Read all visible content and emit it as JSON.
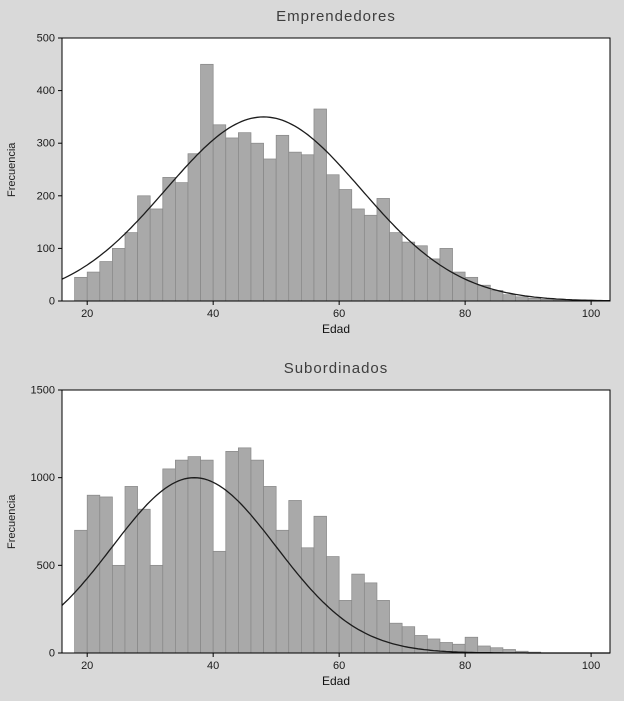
{
  "figure": {
    "background": "#d9d9d9"
  },
  "chart_data": [
    {
      "type": "bar",
      "subtype": "histogram-with-normal-curve",
      "title": "Emprendedores",
      "xlabel": "Edad",
      "ylabel": "Frecuencia",
      "bin_start": 18,
      "bin_width": 2,
      "values": [
        45,
        55,
        75,
        100,
        130,
        200,
        175,
        235,
        225,
        280,
        450,
        335,
        310,
        320,
        300,
        270,
        315,
        283,
        278,
        365,
        240,
        212,
        175,
        163,
        195,
        130,
        112,
        105,
        80,
        100,
        55,
        45,
        30,
        20,
        12,
        8,
        5,
        3,
        2,
        1
      ],
      "curve": {
        "type": "normal",
        "mean": 48,
        "sd": 15.5,
        "peak": 350
      },
      "xlim": [
        16,
        103
      ],
      "ylim": [
        0,
        500
      ],
      "xticks": [
        20,
        40,
        60,
        80,
        100
      ],
      "yticks": [
        0,
        100,
        200,
        300,
        400,
        500
      ],
      "grid": "off",
      "legend": "none",
      "bar_fill": "#a9a9a9",
      "bar_stroke": "#878787",
      "curve_color": "#1c1c1c",
      "frame_color": "#000000",
      "plot_background": "#ffffff"
    },
    {
      "type": "bar",
      "subtype": "histogram-with-normal-curve",
      "title": "Subordinados",
      "xlabel": "Edad",
      "ylabel": "Frecuencia",
      "bin_start": 18,
      "bin_width": 2,
      "values": [
        700,
        900,
        890,
        500,
        950,
        820,
        500,
        1050,
        1100,
        1120,
        1100,
        580,
        1150,
        1170,
        1100,
        950,
        700,
        870,
        600,
        780,
        550,
        300,
        450,
        400,
        300,
        170,
        150,
        100,
        80,
        60,
        50,
        90,
        40,
        30,
        20,
        10,
        5
      ],
      "curve": {
        "type": "normal",
        "mean": 37,
        "sd": 13,
        "peak": 1000
      },
      "xlim": [
        16,
        103
      ],
      "ylim": [
        0,
        1500
      ],
      "xticks": [
        20,
        40,
        60,
        80,
        100
      ],
      "yticks": [
        0,
        500,
        1000,
        1500
      ],
      "grid": "off",
      "legend": "none",
      "bar_fill": "#a9a9a9",
      "bar_stroke": "#878787",
      "curve_color": "#1c1c1c",
      "frame_color": "#000000",
      "plot_background": "#ffffff"
    }
  ]
}
